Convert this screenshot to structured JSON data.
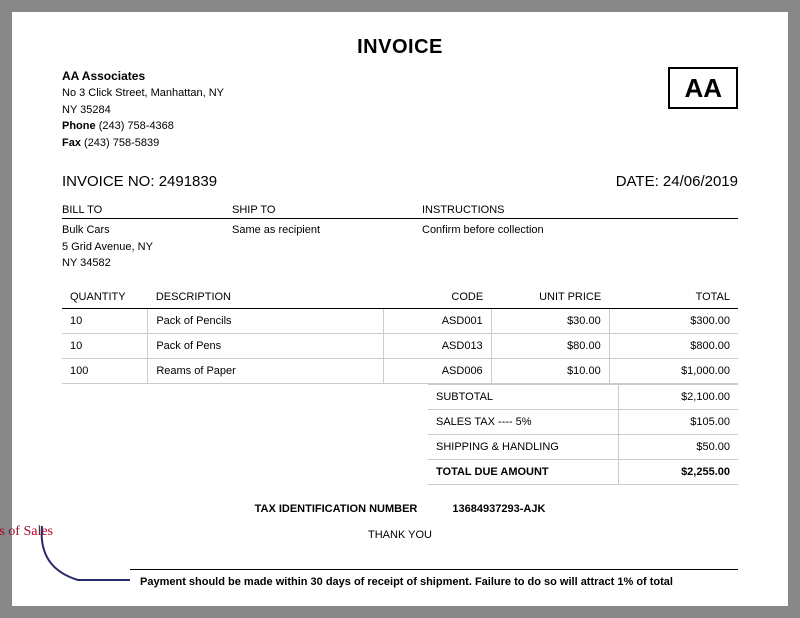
{
  "title": "INVOICE",
  "from": {
    "name": "AA Associates",
    "addr1": "No 3 Click Street, Manhattan, NY",
    "addr2": "NY 35284",
    "phone_label": "Phone",
    "phone": "(243) 758-4368",
    "fax_label": "Fax",
    "fax": "(243) 758-5839"
  },
  "logo": "AA",
  "invoice_no_label": "INVOICE NO:",
  "invoice_no": "2491839",
  "date_label": "DATE:",
  "date": "24/06/2019",
  "bill_to": {
    "header": "BILL TO",
    "name": "Bulk Cars",
    "addr1": "5 Grid Avenue, NY",
    "addr2": "NY 34582"
  },
  "ship_to": {
    "header": "SHIP TO",
    "text": "Same as recipient"
  },
  "instructions": {
    "header": "INSTRUCTIONS",
    "text": "Confirm before collection"
  },
  "table": {
    "columns": {
      "qty": "QUANTITY",
      "desc": "DESCRIPTION",
      "code": "CODE",
      "unit": "UNIT PRICE",
      "total": "TOTAL"
    },
    "rows": [
      {
        "qty": "10",
        "desc": "Pack of Pencils",
        "code": "ASD001",
        "unit": "$30.00",
        "total": "$300.00"
      },
      {
        "qty": "10",
        "desc": "Pack of Pens",
        "code": "ASD013",
        "unit": "$80.00",
        "total": "$800.00"
      },
      {
        "qty": "100",
        "desc": "Reams of Paper",
        "code": "ASD006",
        "unit": "$10.00",
        "total": "$1,000.00"
      }
    ]
  },
  "totals": {
    "subtotal_label": "SUBTOTAL",
    "subtotal": "$2,100.00",
    "tax_label": "SALES TAX ---- 5%",
    "tax": "$105.00",
    "ship_label": "SHIPPING & HANDLING",
    "ship": "$50.00",
    "due_label": "TOTAL DUE AMOUNT",
    "due": "$2,255.00"
  },
  "tin": {
    "label": "TAX IDENTIFICATION NUMBER",
    "value": "13684937293-AJK"
  },
  "thank_you": "THANK YOU",
  "terms": {
    "label": "Terms of Sales",
    "text": "Payment should be made within 30 days of receipt of shipment. Failure to do so will attract 1% of total"
  },
  "colors": {
    "annotation": "#b00020",
    "border": "#cccccc",
    "ink": "#000000",
    "paper": "#ffffff",
    "bg": "#888888"
  }
}
